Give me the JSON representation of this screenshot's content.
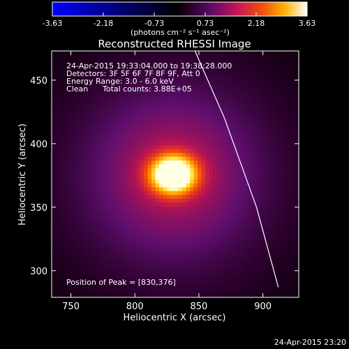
{
  "chart_data": {
    "type": "heatmap",
    "title": "Reconstructed RHESSI Image",
    "xlabel": "Heliocentric X (arcsec)",
    "ylabel": "Heliocentric Y (arcsec)",
    "xlim": [
      735,
      928
    ],
    "ylim": [
      279,
      473
    ],
    "xticks": [
      750,
      800,
      850,
      900
    ],
    "yticks": [
      300,
      350,
      400,
      450
    ],
    "colorbar": {
      "ticks": [
        "-3.63",
        "-2.18",
        "-0.73",
        "0.73",
        "2.18",
        "3.63"
      ],
      "range": [
        -3.63,
        3.63
      ],
      "unit_label": "(photons cm⁻² s⁻¹ asec⁻²)"
    },
    "annotations": {
      "time_range": "24-Apr-2015 19:33:04.000 to 19:38:28.000",
      "detectors": "Detectors: 3F 5F 6F 7F 8F 9F, Att 0",
      "energy": "Energy Range: 3.0 - 6.0 keV",
      "clean": "Clean",
      "total_counts": "Total counts: 3.88E+05",
      "peak": "Position of Peak = [830,376]"
    },
    "source": {
      "peak_x": 830,
      "peak_y": 376,
      "peak_value": 3.63
    },
    "limb": [
      [
        847,
        473
      ],
      [
        870,
        420
      ],
      [
        895,
        350
      ],
      [
        912,
        287
      ]
    ],
    "timestamp": "24-Apr-2015 23:20",
    "colors": {
      "negative": "#0000ff",
      "positive_hot": "#ffffff",
      "limb": "#ffffff"
    }
  }
}
